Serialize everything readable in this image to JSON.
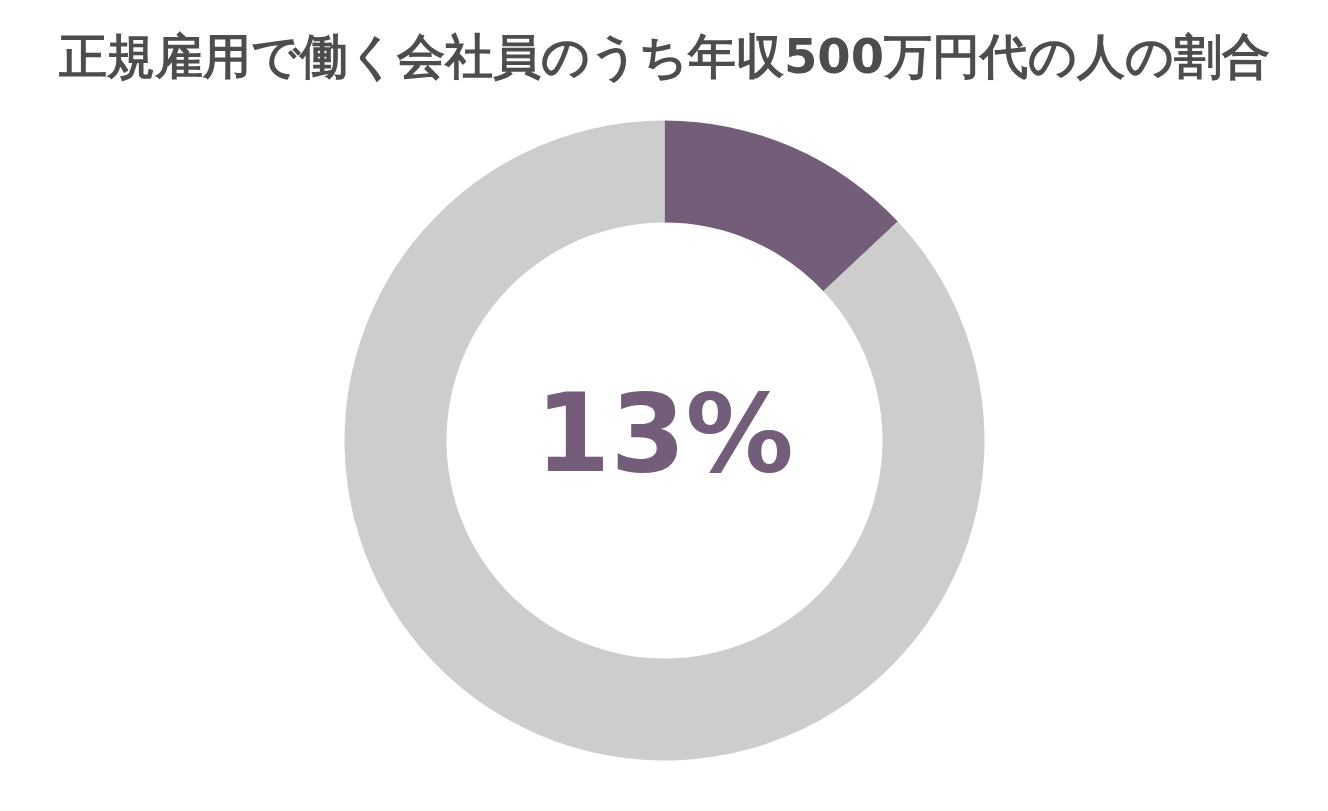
{
  "chart_data": {
    "type": "donut",
    "title": "正規雇用で働く会社員のうち年収500万円代の人の割合",
    "categories": [
      null,
      null
    ],
    "values": [
      13,
      87
    ],
    "colors": [
      "#735d79",
      "#cdcdcd"
    ],
    "annotations": [
      "13%"
    ]
  }
}
